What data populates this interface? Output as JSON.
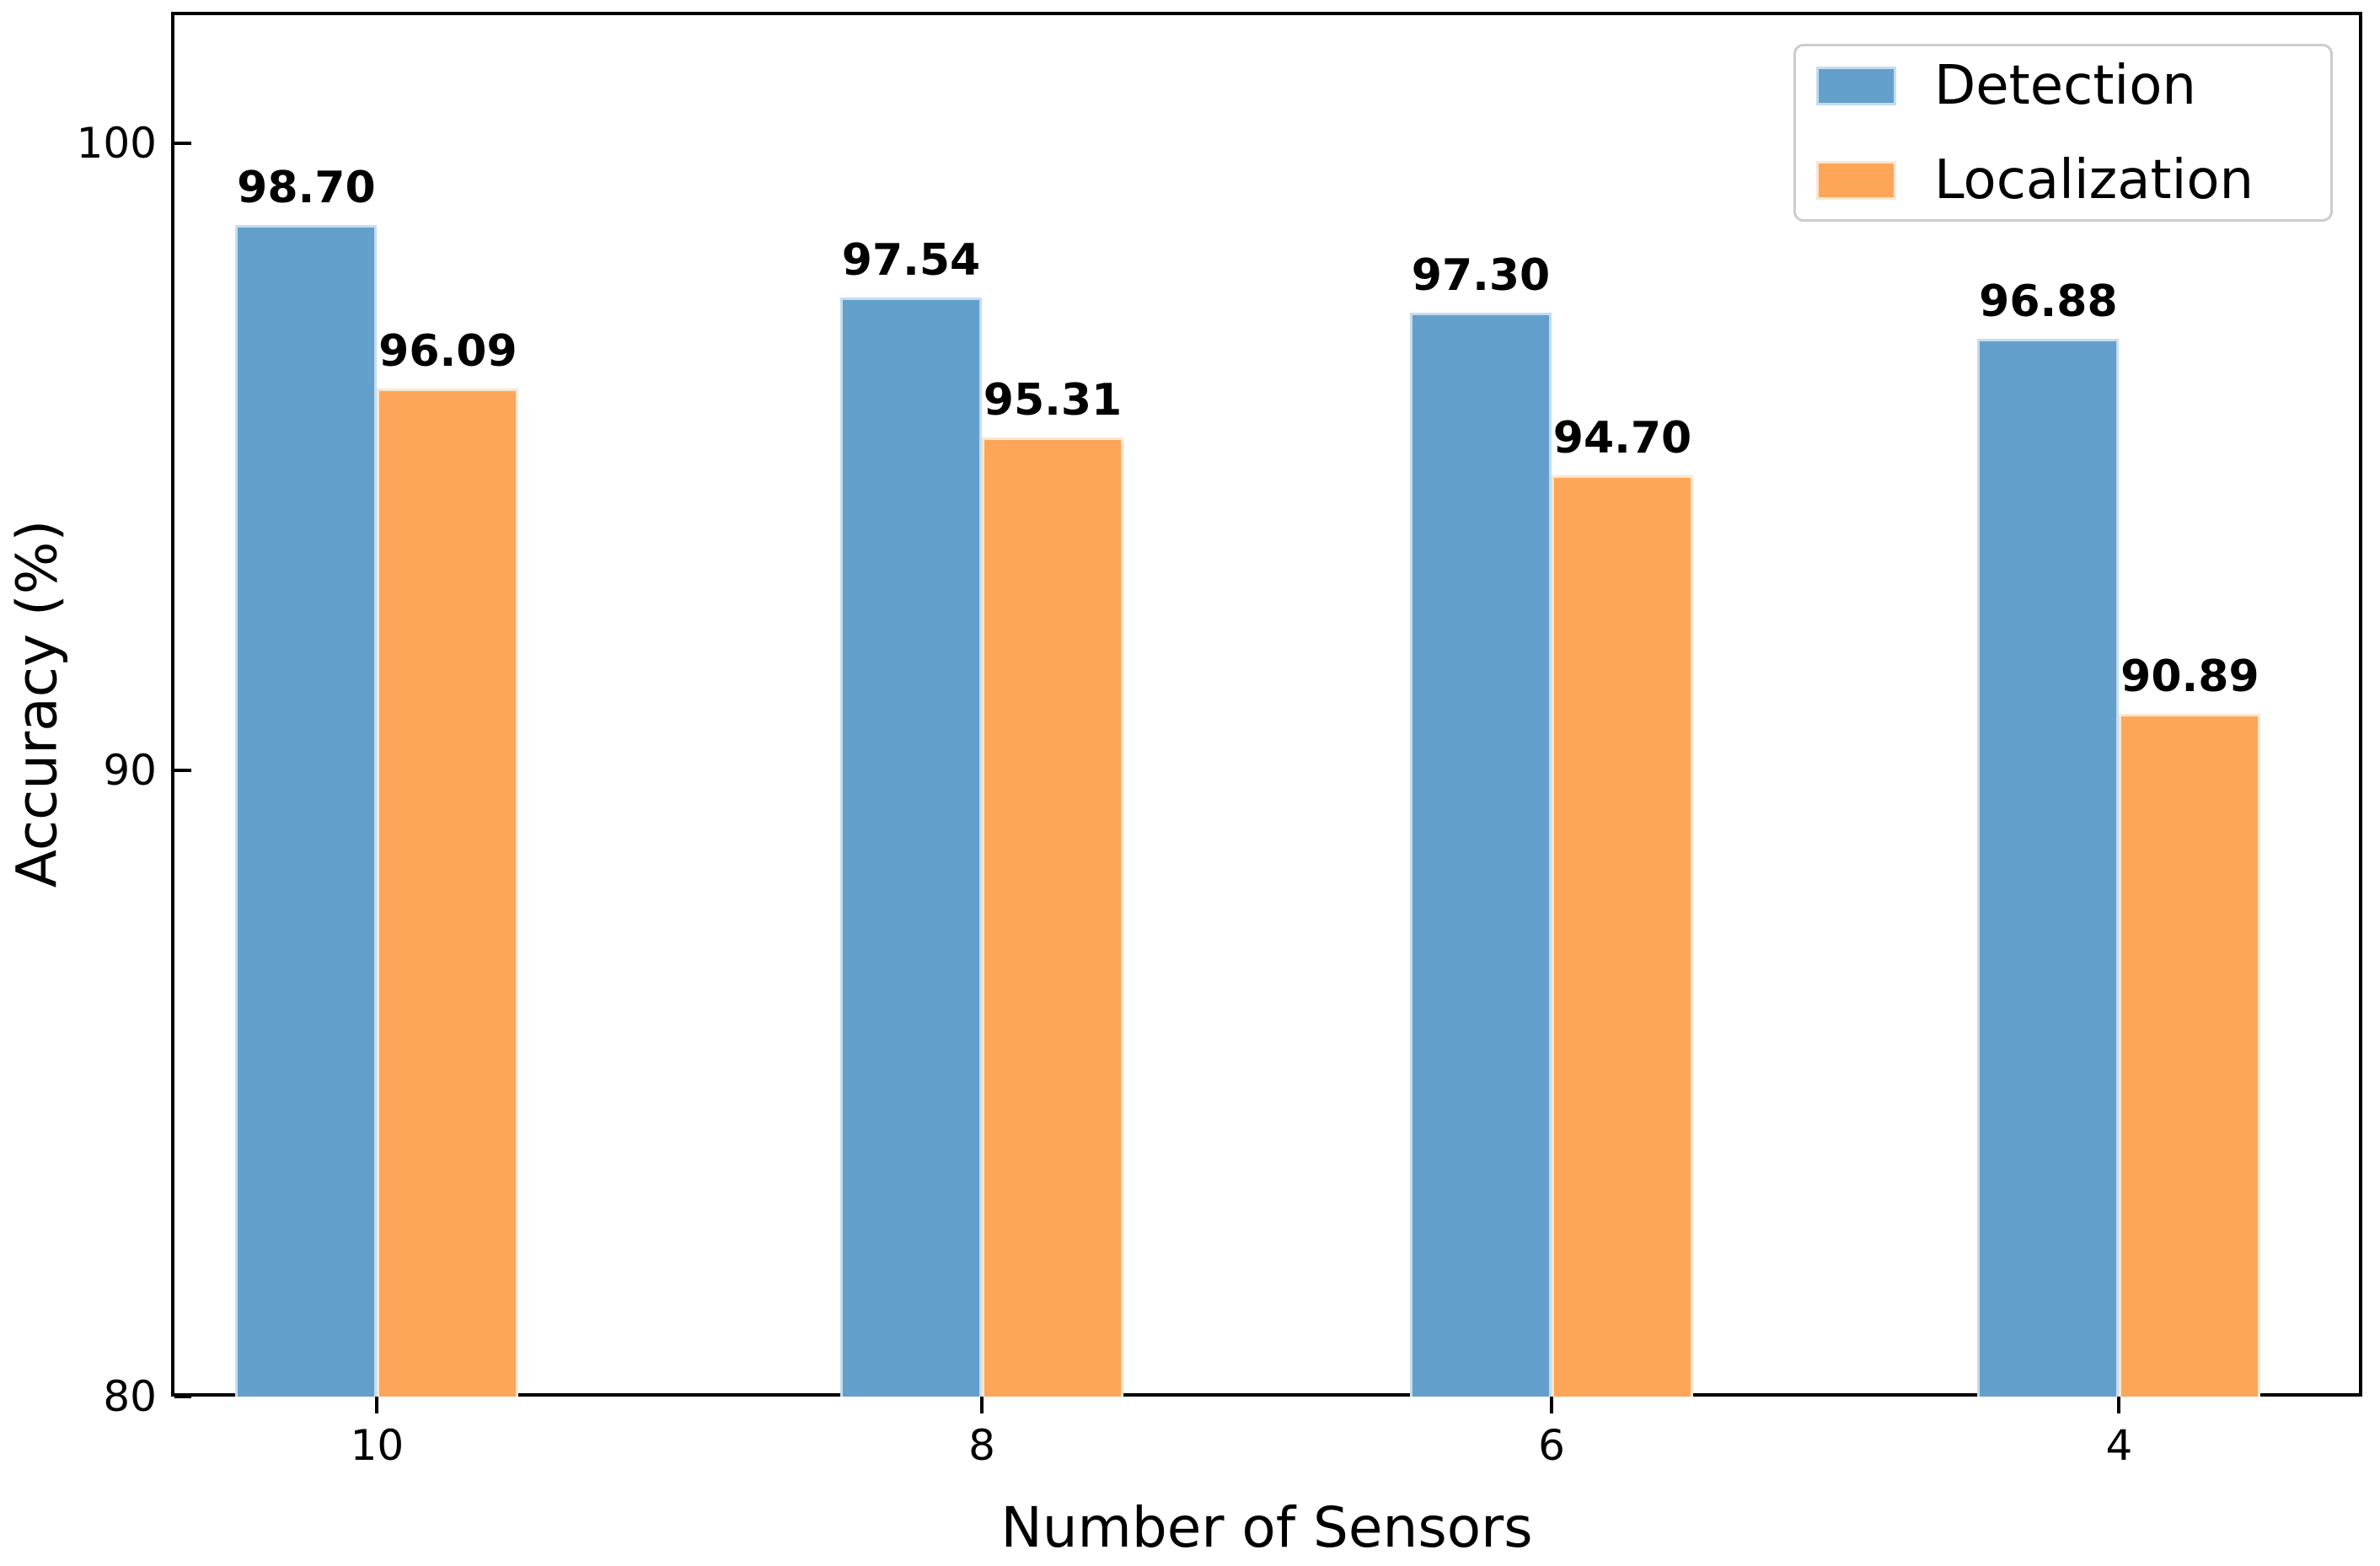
{
  "chart_data": {
    "type": "bar",
    "title": "",
    "categories": [
      "10",
      "8",
      "6",
      "4"
    ],
    "series": [
      {
        "name": "Detection",
        "color": "#639FCB",
        "edge_color": "#C6DCEE",
        "values": [
          98.7,
          97.54,
          97.3,
          96.88
        ],
        "labels": [
          "98.70",
          "97.54",
          "97.30",
          "96.88"
        ]
      },
      {
        "name": "Localization",
        "color": "#FDA65A",
        "edge_color": "#FAE6D1",
        "values": [
          96.09,
          95.31,
          94.7,
          90.89
        ],
        "labels": [
          "96.09",
          "95.31",
          "94.70",
          "90.89"
        ]
      }
    ],
    "xlabel": "Number of Sensors",
    "ylabel": "Accuracy (%)",
    "ylim": [
      80,
      102.1
    ],
    "yticks": [
      {
        "label": "100",
        "value": 100
      },
      {
        "label": "90",
        "value": 90
      },
      {
        "label": "80",
        "value": 80
      }
    ],
    "legend_position": "upper right",
    "grid": false,
    "colors": {
      "spine": "#000000",
      "legend_border": "#cccccc",
      "background": "#ffffff"
    }
  }
}
